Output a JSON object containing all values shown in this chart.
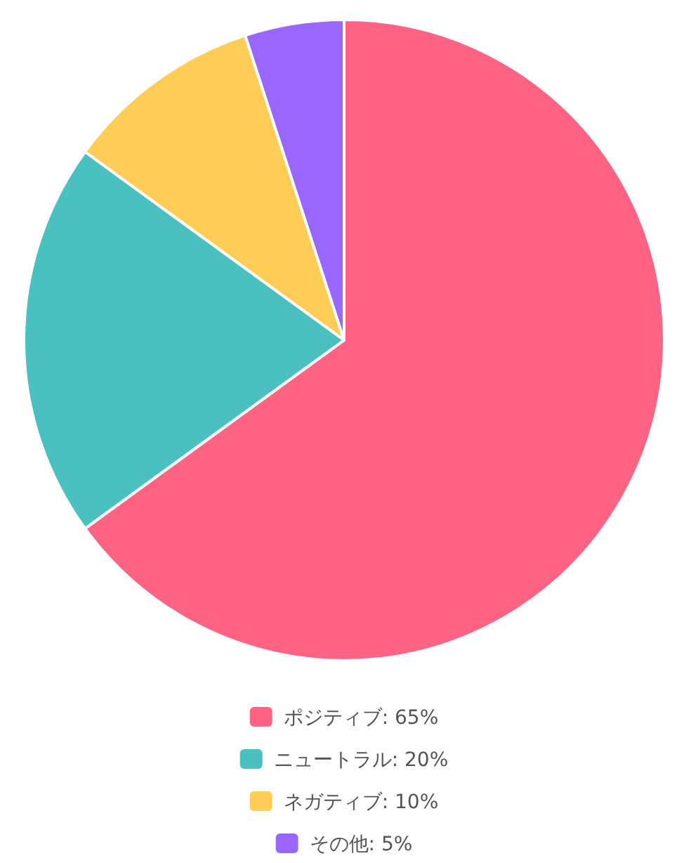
{
  "chart_data": {
    "type": "pie",
    "categories": [
      "ポジティブ: 65%",
      "ニュートラル: 20%",
      "ネガティブ: 10%",
      "その他: 5%"
    ],
    "values": [
      65,
      20,
      10,
      5
    ],
    "colors": [
      "#ff6384",
      "#4bc0c0",
      "#ffcd56",
      "#9966ff"
    ],
    "legend": "bottom"
  }
}
